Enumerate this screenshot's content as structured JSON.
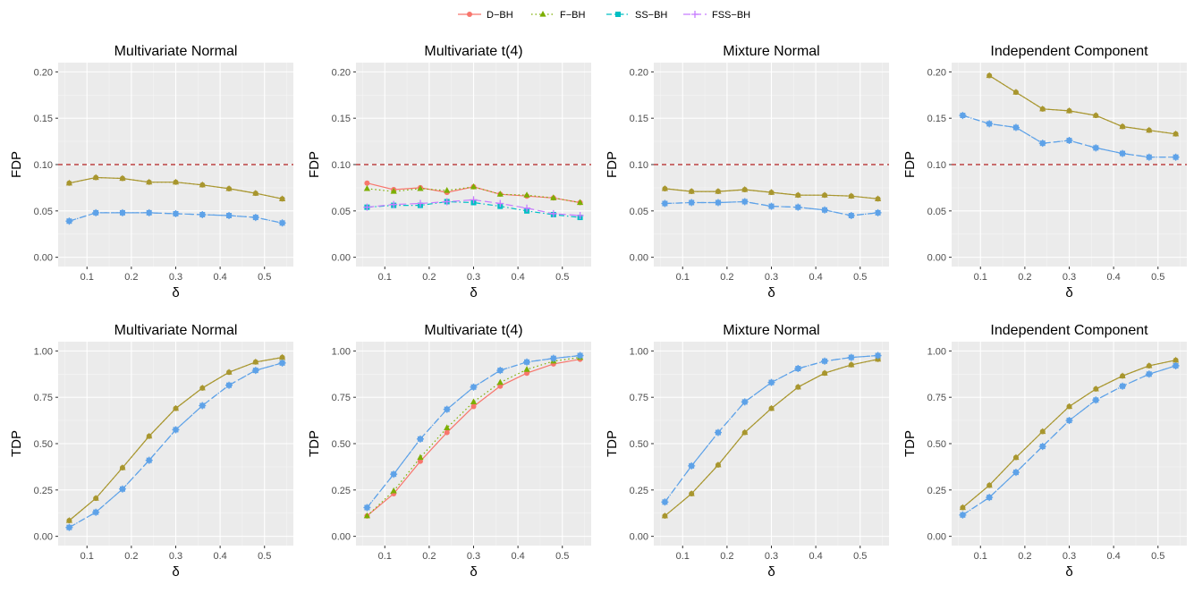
{
  "colors": {
    "D-BH": "#F8766D",
    "F-BH": "#7CAE00",
    "SS-BH": "#00BFC4",
    "FSS-BH": "#C77CFF",
    "overlap_brown": "#A8962E",
    "overlap_blue": "#5EA2E8",
    "ref_line": "#B22222",
    "panel_bg": "#EBEBEB",
    "grid": "#FFFFFF"
  },
  "legend": {
    "entries": [
      {
        "label": "D−BH",
        "key": "D-BH",
        "marker": "circle",
        "dash": "solid"
      },
      {
        "label": "F−BH",
        "key": "F-BH",
        "marker": "triangle",
        "dash": "dotted"
      },
      {
        "label": "SS−BH",
        "key": "SS-BH",
        "marker": "square",
        "dash": "dotdash"
      },
      {
        "label": "FSS−BH",
        "key": "FSS-BH",
        "marker": "plus",
        "dash": "longdash"
      }
    ]
  },
  "chart_data": [
    {
      "type": "line",
      "metric": "FDP",
      "title": "Multivariate Normal",
      "xlabel": "δ",
      "ylabel": "FDP",
      "x": [
        0.06,
        0.12,
        0.18,
        0.24,
        0.3,
        0.36,
        0.42,
        0.48,
        0.54
      ],
      "xticks": [
        "0.1",
        "0.2",
        "0.3",
        "0.4",
        "0.5"
      ],
      "yticks": [
        "0.00",
        "0.05",
        "0.10",
        "0.15",
        "0.20"
      ],
      "xlim": [
        0.035,
        0.565
      ],
      "ylim": [
        -0.01,
        0.21
      ],
      "hline": 0.1,
      "series": [
        {
          "name": "D-BH",
          "values": [
            0.08,
            0.086,
            0.085,
            0.081,
            0.081,
            0.078,
            0.074,
            0.069,
            0.063
          ]
        },
        {
          "name": "F-BH",
          "values": [
            0.08,
            0.086,
            0.085,
            0.081,
            0.081,
            0.078,
            0.074,
            0.069,
            0.063
          ]
        },
        {
          "name": "SS-BH",
          "values": [
            0.039,
            0.048,
            0.048,
            0.048,
            0.047,
            0.046,
            0.045,
            0.043,
            0.037
          ]
        },
        {
          "name": "FSS-BH",
          "values": [
            0.039,
            0.048,
            0.048,
            0.048,
            0.047,
            0.046,
            0.045,
            0.043,
            0.037
          ]
        }
      ]
    },
    {
      "type": "line",
      "metric": "FDP",
      "title": "Multivariate t(4)",
      "xlabel": "δ",
      "ylabel": "FDP",
      "x": [
        0.06,
        0.12,
        0.18,
        0.24,
        0.3,
        0.36,
        0.42,
        0.48,
        0.54
      ],
      "xticks": [
        "0.1",
        "0.2",
        "0.3",
        "0.4",
        "0.5"
      ],
      "yticks": [
        "0.00",
        "0.05",
        "0.10",
        "0.15",
        "0.20"
      ],
      "xlim": [
        0.035,
        0.565
      ],
      "ylim": [
        -0.01,
        0.21
      ],
      "hline": 0.1,
      "series": [
        {
          "name": "D-BH",
          "values": [
            0.08,
            0.073,
            0.075,
            0.07,
            0.076,
            0.068,
            0.066,
            0.064,
            0.059
          ]
        },
        {
          "name": "F-BH",
          "values": [
            0.074,
            0.071,
            0.074,
            0.072,
            0.076,
            0.068,
            0.067,
            0.064,
            0.059
          ]
        },
        {
          "name": "SS-BH",
          "values": [
            0.054,
            0.056,
            0.056,
            0.06,
            0.059,
            0.055,
            0.05,
            0.046,
            0.043
          ]
        },
        {
          "name": "FSS-BH",
          "values": [
            0.054,
            0.057,
            0.058,
            0.06,
            0.062,
            0.058,
            0.053,
            0.047,
            0.045
          ]
        }
      ]
    },
    {
      "type": "line",
      "metric": "FDP",
      "title": "Mixture Normal",
      "xlabel": "δ",
      "ylabel": "FDP",
      "x": [
        0.06,
        0.12,
        0.18,
        0.24,
        0.3,
        0.36,
        0.42,
        0.48,
        0.54
      ],
      "xticks": [
        "0.1",
        "0.2",
        "0.3",
        "0.4",
        "0.5"
      ],
      "yticks": [
        "0.00",
        "0.05",
        "0.10",
        "0.15",
        "0.20"
      ],
      "xlim": [
        0.035,
        0.565
      ],
      "ylim": [
        -0.01,
        0.21
      ],
      "hline": 0.1,
      "series": [
        {
          "name": "D-BH",
          "values": [
            0.074,
            0.071,
            0.071,
            0.073,
            0.07,
            0.067,
            0.067,
            0.066,
            0.063
          ]
        },
        {
          "name": "F-BH",
          "values": [
            0.074,
            0.071,
            0.071,
            0.073,
            0.07,
            0.067,
            0.067,
            0.066,
            0.063
          ]
        },
        {
          "name": "SS-BH",
          "values": [
            0.058,
            0.059,
            0.059,
            0.06,
            0.055,
            0.054,
            0.051,
            0.045,
            0.048
          ]
        },
        {
          "name": "FSS-BH",
          "values": [
            0.058,
            0.059,
            0.059,
            0.06,
            0.055,
            0.054,
            0.051,
            0.045,
            0.048
          ]
        }
      ]
    },
    {
      "type": "line",
      "metric": "FDP",
      "title": "Independent Component",
      "xlabel": "δ",
      "ylabel": "FDP",
      "x": [
        0.06,
        0.12,
        0.18,
        0.24,
        0.3,
        0.36,
        0.42,
        0.48,
        0.54
      ],
      "xticks": [
        "0.1",
        "0.2",
        "0.3",
        "0.4",
        "0.5"
      ],
      "yticks": [
        "0.00",
        "0.05",
        "0.10",
        "0.15",
        "0.20"
      ],
      "xlim": [
        0.035,
        0.565
      ],
      "ylim": [
        -0.01,
        0.21
      ],
      "hline": 0.1,
      "series": [
        {
          "name": "D-BH",
          "values": [
            null,
            0.196,
            0.178,
            0.16,
            0.158,
            0.153,
            0.141,
            0.137,
            0.133
          ]
        },
        {
          "name": "F-BH",
          "values": [
            null,
            0.196,
            0.178,
            0.16,
            0.158,
            0.153,
            0.141,
            0.137,
            0.133
          ]
        },
        {
          "name": "SS-BH",
          "values": [
            0.153,
            0.144,
            0.14,
            0.123,
            0.126,
            0.118,
            0.112,
            0.108,
            0.108
          ]
        },
        {
          "name": "FSS-BH",
          "values": [
            0.153,
            0.144,
            0.14,
            0.123,
            0.126,
            0.118,
            0.112,
            0.108,
            0.108
          ]
        }
      ]
    },
    {
      "type": "line",
      "metric": "TDP",
      "title": "Multivariate Normal",
      "xlabel": "δ",
      "ylabel": "TDP",
      "x": [
        0.06,
        0.12,
        0.18,
        0.24,
        0.3,
        0.36,
        0.42,
        0.48,
        0.54
      ],
      "xticks": [
        "0.1",
        "0.2",
        "0.3",
        "0.4",
        "0.5"
      ],
      "yticks": [
        "0.00",
        "0.25",
        "0.50",
        "0.75",
        "1.00"
      ],
      "xlim": [
        0.035,
        0.565
      ],
      "ylim": [
        -0.05,
        1.05
      ],
      "hline": null,
      "series": [
        {
          "name": "D-BH",
          "values": [
            0.085,
            0.205,
            0.37,
            0.54,
            0.69,
            0.8,
            0.885,
            0.94,
            0.965
          ]
        },
        {
          "name": "F-BH",
          "values": [
            0.085,
            0.205,
            0.37,
            0.54,
            0.69,
            0.8,
            0.885,
            0.94,
            0.965
          ]
        },
        {
          "name": "SS-BH",
          "values": [
            0.048,
            0.13,
            0.255,
            0.41,
            0.575,
            0.705,
            0.815,
            0.895,
            0.935
          ]
        },
        {
          "name": "FSS-BH",
          "values": [
            0.048,
            0.13,
            0.255,
            0.41,
            0.575,
            0.705,
            0.815,
            0.895,
            0.935
          ]
        }
      ]
    },
    {
      "type": "line",
      "metric": "TDP",
      "title": "Multivariate t(4)",
      "xlabel": "δ",
      "ylabel": "TDP",
      "x": [
        0.06,
        0.12,
        0.18,
        0.24,
        0.3,
        0.36,
        0.42,
        0.48,
        0.54
      ],
      "xticks": [
        "0.1",
        "0.2",
        "0.3",
        "0.4",
        "0.5"
      ],
      "yticks": [
        "0.00",
        "0.25",
        "0.50",
        "0.75",
        "1.00"
      ],
      "xlim": [
        0.035,
        0.565
      ],
      "ylim": [
        -0.05,
        1.05
      ],
      "hline": null,
      "series": [
        {
          "name": "D-BH",
          "values": [
            0.11,
            0.23,
            0.405,
            0.56,
            0.7,
            0.81,
            0.88,
            0.93,
            0.955
          ]
        },
        {
          "name": "F-BH",
          "values": [
            0.11,
            0.245,
            0.425,
            0.585,
            0.725,
            0.83,
            0.9,
            0.945,
            0.965
          ]
        },
        {
          "name": "SS-BH",
          "values": [
            0.155,
            0.335,
            0.525,
            0.685,
            0.805,
            0.895,
            0.94,
            0.96,
            0.975
          ]
        },
        {
          "name": "FSS-BH",
          "values": [
            0.155,
            0.335,
            0.525,
            0.685,
            0.805,
            0.895,
            0.94,
            0.96,
            0.975
          ]
        }
      ]
    },
    {
      "type": "line",
      "metric": "TDP",
      "title": "Mixture Normal",
      "xlabel": "δ",
      "ylabel": "TDP",
      "x": [
        0.06,
        0.12,
        0.18,
        0.24,
        0.3,
        0.36,
        0.42,
        0.48,
        0.54
      ],
      "xticks": [
        "0.1",
        "0.2",
        "0.3",
        "0.4",
        "0.5"
      ],
      "yticks": [
        "0.00",
        "0.25",
        "0.50",
        "0.75",
        "1.00"
      ],
      "xlim": [
        0.035,
        0.565
      ],
      "ylim": [
        -0.05,
        1.05
      ],
      "hline": null,
      "series": [
        {
          "name": "D-BH",
          "values": [
            0.11,
            0.23,
            0.385,
            0.56,
            0.69,
            0.805,
            0.88,
            0.925,
            0.955
          ]
        },
        {
          "name": "F-BH",
          "values": [
            0.11,
            0.23,
            0.385,
            0.56,
            0.69,
            0.805,
            0.88,
            0.925,
            0.955
          ]
        },
        {
          "name": "SS-BH",
          "values": [
            0.185,
            0.38,
            0.56,
            0.725,
            0.83,
            0.905,
            0.945,
            0.965,
            0.975
          ]
        },
        {
          "name": "FSS-BH",
          "values": [
            0.185,
            0.38,
            0.56,
            0.725,
            0.83,
            0.905,
            0.945,
            0.965,
            0.975
          ]
        }
      ]
    },
    {
      "type": "line",
      "metric": "TDP",
      "title": "Independent Component",
      "xlabel": "δ",
      "ylabel": "TDP",
      "x": [
        0.06,
        0.12,
        0.18,
        0.24,
        0.3,
        0.36,
        0.42,
        0.48,
        0.54
      ],
      "xticks": [
        "0.1",
        "0.2",
        "0.3",
        "0.4",
        "0.5"
      ],
      "yticks": [
        "0.00",
        "0.25",
        "0.50",
        "0.75",
        "1.00"
      ],
      "xlim": [
        0.035,
        0.565
      ],
      "ylim": [
        -0.05,
        1.05
      ],
      "hline": null,
      "series": [
        {
          "name": "D-BH",
          "values": [
            0.155,
            0.275,
            0.425,
            0.565,
            0.7,
            0.795,
            0.865,
            0.92,
            0.95
          ]
        },
        {
          "name": "F-BH",
          "values": [
            0.155,
            0.275,
            0.425,
            0.565,
            0.7,
            0.795,
            0.865,
            0.92,
            0.95
          ]
        },
        {
          "name": "SS-BH",
          "values": [
            0.115,
            0.21,
            0.345,
            0.485,
            0.625,
            0.735,
            0.81,
            0.875,
            0.92
          ]
        },
        {
          "name": "FSS-BH",
          "values": [
            0.115,
            0.21,
            0.345,
            0.485,
            0.625,
            0.735,
            0.81,
            0.875,
            0.92
          ]
        }
      ]
    }
  ]
}
